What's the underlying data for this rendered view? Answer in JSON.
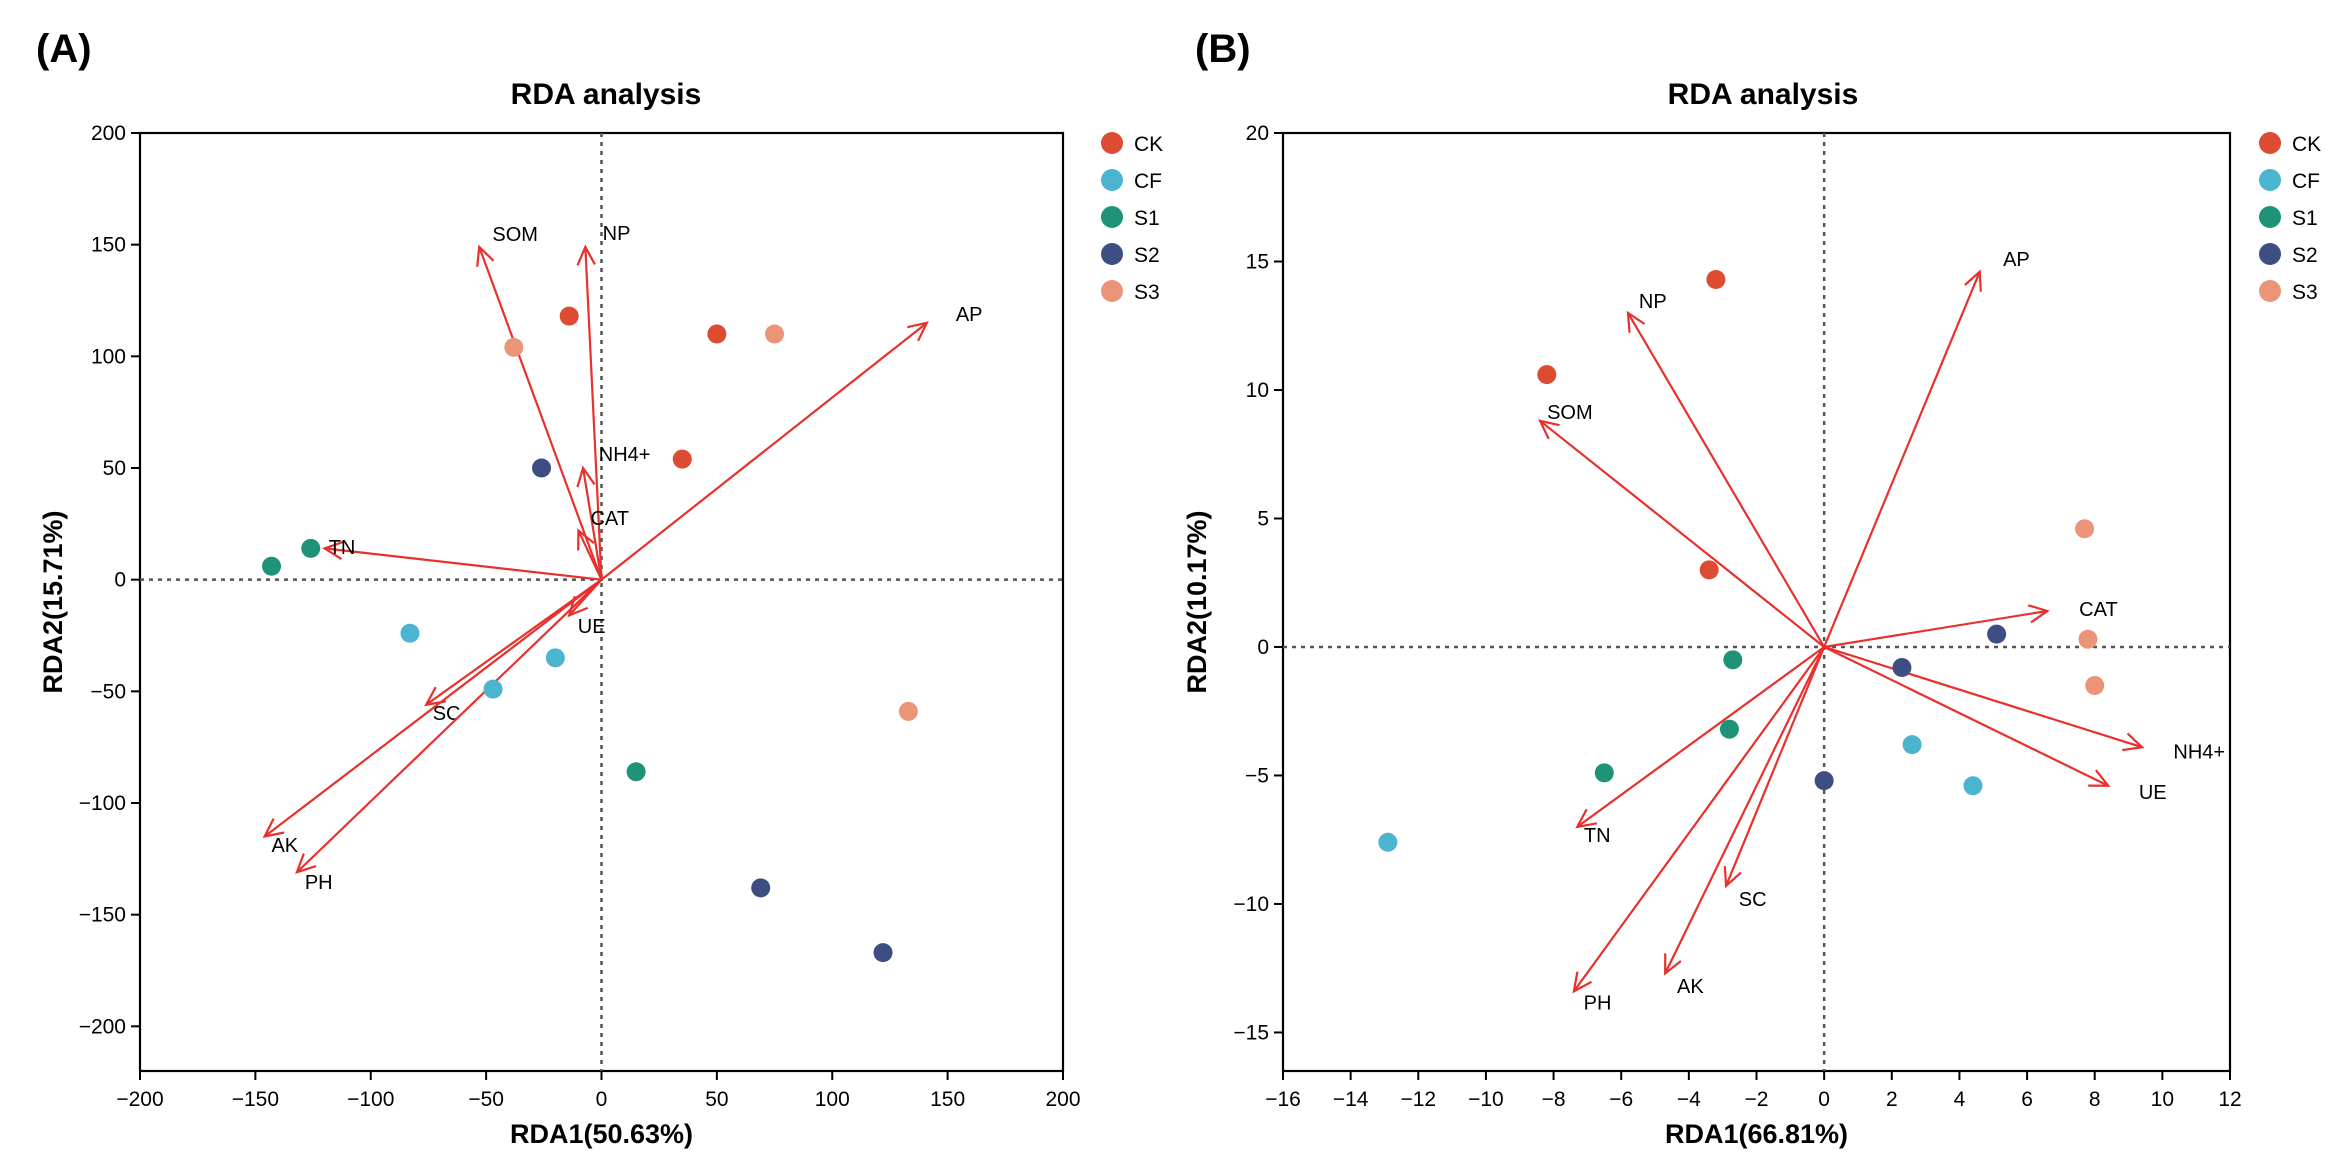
{
  "chart_data": [
    {
      "panel": "(A)",
      "type": "scatter",
      "title": "RDA analysis",
      "xlabel": "RDA1(50.63%)",
      "ylabel": "RDA2(15.71%)",
      "xlim": [
        -200,
        200
      ],
      "ylim": [
        -220,
        200
      ],
      "xticks": [
        -200,
        -150,
        -100,
        -50,
        0,
        50,
        100,
        150,
        200
      ],
      "yticks": [
        -200,
        -150,
        -100,
        -50,
        0,
        50,
        100,
        150,
        200
      ],
      "tick_labels_x": [
        "−200",
        "−150",
        "−100",
        "−50",
        "0",
        "50",
        "100",
        "150",
        "200"
      ],
      "tick_labels_y": [
        "−200",
        "−150",
        "−100",
        "−50",
        "0",
        "50",
        "100",
        "150",
        "200"
      ],
      "reference_lines": {
        "x": 0,
        "y": 0,
        "style": "dotted"
      },
      "legend": "right",
      "series": [
        {
          "name": "CK",
          "color": "#dc4b32",
          "points": [
            [
              -14,
              118
            ],
            [
              50,
              110
            ],
            [
              35,
              54
            ]
          ]
        },
        {
          "name": "CF",
          "color": "#4bb4cf",
          "points": [
            [
              -83,
              -24
            ],
            [
              -47,
              -49
            ],
            [
              -20,
              -35
            ]
          ]
        },
        {
          "name": "S1",
          "color": "#1f9377",
          "points": [
            [
              -143,
              6
            ],
            [
              -126,
              14
            ],
            [
              15,
              -86
            ]
          ]
        },
        {
          "name": "S2",
          "color": "#3c4e82",
          "points": [
            [
              -26,
              50
            ],
            [
              69,
              -138
            ],
            [
              122,
              -167
            ]
          ]
        },
        {
          "name": "S3",
          "color": "#eb9478",
          "points": [
            [
              -38,
              104
            ],
            [
              75,
              110
            ],
            [
              133,
              -59
            ]
          ]
        }
      ],
      "arrow_color": "#e8302c",
      "vectors": [
        {
          "label": "AP",
          "x": 141,
          "y": 115
        },
        {
          "label": "SOM",
          "x": -53,
          "y": 149
        },
        {
          "label": "NP",
          "x": -7,
          "y": 149
        },
        {
          "label": "NH4+",
          "x": -8,
          "y": 50
        },
        {
          "label": "CAT",
          "x": -10,
          "y": 22
        },
        {
          "label": "TN",
          "x": -120,
          "y": 14
        },
        {
          "label": "UE",
          "x": -14,
          "y": -16
        },
        {
          "label": "SC",
          "x": -76,
          "y": -56
        },
        {
          "label": "AK",
          "x": -146,
          "y": -115
        },
        {
          "label": "PH",
          "x": -132,
          "y": -131
        }
      ]
    },
    {
      "panel": "(B)",
      "type": "scatter",
      "title": "RDA analysis",
      "xlabel": "RDA1(66.81%)",
      "ylabel": "RDA2(10.17%)",
      "xlim": [
        -16,
        12
      ],
      "ylim": [
        -16.5,
        20
      ],
      "xticks": [
        -16,
        -14,
        -12,
        -10,
        -8,
        -6,
        -4,
        -2,
        0,
        2,
        4,
        6,
        8,
        10,
        12
      ],
      "yticks": [
        -15,
        -10,
        -5,
        0,
        5,
        10,
        15,
        20
      ],
      "tick_labels_x": [
        "−16",
        "−14",
        "−12",
        "−10",
        "−8",
        "−6",
        "−4",
        "−2",
        "0",
        "2",
        "4",
        "6",
        "8",
        "10",
        "12"
      ],
      "tick_labels_y": [
        "−15",
        "−10",
        "−5",
        "0",
        "5",
        "10",
        "15",
        "20"
      ],
      "reference_lines": {
        "x": 0,
        "y": 0,
        "style": "dotted"
      },
      "legend": "right",
      "series": [
        {
          "name": "CK",
          "color": "#dc4b32",
          "points": [
            [
              -3.2,
              14.3
            ],
            [
              -8.2,
              10.6
            ],
            [
              -3.4,
              3.0
            ]
          ]
        },
        {
          "name": "CF",
          "color": "#4bb4cf",
          "points": [
            [
              -12.9,
              -7.6
            ],
            [
              2.6,
              -3.8
            ],
            [
              4.4,
              -5.4
            ]
          ]
        },
        {
          "name": "S1",
          "color": "#1f9377",
          "points": [
            [
              -2.7,
              -0.5
            ],
            [
              -2.8,
              -3.2
            ],
            [
              -6.5,
              -4.9
            ]
          ]
        },
        {
          "name": "S2",
          "color": "#3c4e82",
          "points": [
            [
              0.0,
              -5.2
            ],
            [
              2.3,
              -0.8
            ],
            [
              5.1,
              0.5
            ]
          ]
        },
        {
          "name": "S3",
          "color": "#eb9478",
          "points": [
            [
              7.7,
              4.6
            ],
            [
              7.8,
              0.3
            ],
            [
              8.0,
              -1.5
            ]
          ]
        }
      ],
      "arrow_color": "#e8302c",
      "vectors": [
        {
          "label": "AP",
          "x": 4.6,
          "y": 14.6
        },
        {
          "label": "NP",
          "x": -5.8,
          "y": 13.0
        },
        {
          "label": "SOM",
          "x": -8.4,
          "y": 8.8
        },
        {
          "label": "CAT",
          "x": 6.6,
          "y": 1.4
        },
        {
          "label": "NH4+",
          "x": 9.4,
          "y": -3.9
        },
        {
          "label": "UE",
          "x": 8.4,
          "y": -5.4
        },
        {
          "label": "TN",
          "x": -7.3,
          "y": -7.0
        },
        {
          "label": "SC",
          "x": -2.9,
          "y": -9.3
        },
        {
          "label": "AK",
          "x": -4.7,
          "y": -12.7
        },
        {
          "label": "PH",
          "x": -7.4,
          "y": -13.4
        }
      ]
    }
  ]
}
